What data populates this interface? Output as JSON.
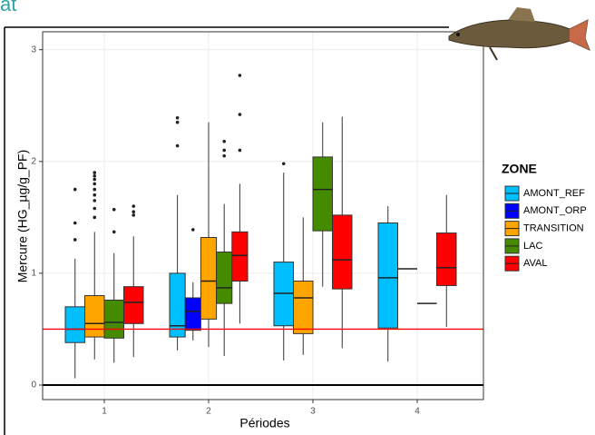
{
  "chart_data": {
    "type": "boxplot",
    "title": "at",
    "x_label": "Périodes",
    "y_label": "Mercure (HG_µg/g_PF)",
    "legend_title": "ZONE",
    "categories": [
      "1",
      "2",
      "3",
      "4"
    ],
    "ylim": [
      -0.13,
      3.16
    ],
    "yticks": [
      0,
      1,
      2,
      3
    ],
    "grid": true,
    "hlines": [
      {
        "value": 0.5,
        "color": "#ff0000"
      },
      {
        "value": 0,
        "color": "#000000"
      }
    ],
    "series": [
      {
        "name": "AMONT_REF",
        "color": "#00bfff",
        "boxes": [
          {
            "min": 0.06,
            "q1": 0.38,
            "median": 0.5,
            "q3": 0.7,
            "max": 1.13,
            "outliers": [
              1.75,
              1.45,
              1.3
            ]
          },
          {
            "min": 0.31,
            "q1": 0.43,
            "median": 0.53,
            "q3": 1.0,
            "max": 1.7,
            "outliers": [
              2.39,
              2.35,
              2.14
            ]
          },
          {
            "min": 0.22,
            "q1": 0.53,
            "median": 0.82,
            "q3": 1.1,
            "max": 1.9,
            "outliers": [
              1.98
            ]
          },
          {
            "min": 0.21,
            "q1": 0.51,
            "median": 0.96,
            "q3": 1.45,
            "max": 1.6,
            "outliers": []
          }
        ]
      },
      {
        "name": "AMONT_ORP",
        "color": "#0000ff",
        "boxes": [
          null,
          {
            "min": 0.4,
            "q1": 0.49,
            "median": 0.66,
            "q3": 0.78,
            "max": 0.92,
            "outliers": [
              1.39
            ]
          },
          null,
          null
        ]
      },
      {
        "name": "TRANSITION",
        "color": "#ffa500",
        "boxes": [
          {
            "min": 0.23,
            "q1": 0.43,
            "median": 0.55,
            "q3": 0.8,
            "max": 1.37,
            "outliers": [
              1.9,
              1.87,
              1.84,
              1.8,
              1.75,
              1.7,
              1.65,
              1.58,
              1.5
            ]
          },
          {
            "min": 0.34,
            "q1": 0.59,
            "median": 0.93,
            "q3": 1.32,
            "max": 2.35,
            "outliers": []
          },
          {
            "min": 0.27,
            "q1": 0.46,
            "median": 0.78,
            "q3": 0.93,
            "max": 1.5,
            "outliers": []
          },
          {
            "min": 1.04,
            "q1": 1.04,
            "median": 1.04,
            "q3": 1.04,
            "max": 1.04,
            "outliers": []
          }
        ]
      },
      {
        "name": "LAC",
        "color": "#458b00",
        "boxes": [
          {
            "min": 0.2,
            "q1": 0.42,
            "median": 0.56,
            "q3": 0.76,
            "max": 1.18,
            "outliers": [
              1.57,
              1.37
            ]
          },
          {
            "min": 0.26,
            "q1": 0.73,
            "median": 0.87,
            "q3": 1.19,
            "max": 1.62,
            "outliers": [
              2.18,
              2.1,
              2.05
            ]
          },
          {
            "min": 0.88,
            "q1": 1.38,
            "median": 1.75,
            "q3": 2.04,
            "max": 2.35,
            "outliers": []
          },
          {
            "min": 0.73,
            "q1": 0.73,
            "median": 0.73,
            "q3": 0.73,
            "max": 0.73,
            "outliers": []
          }
        ]
      },
      {
        "name": "AVAL",
        "color": "#ff0000",
        "boxes": [
          {
            "min": 0.25,
            "q1": 0.55,
            "median": 0.74,
            "q3": 0.88,
            "max": 1.33,
            "outliers": [
              1.6,
              1.55,
              1.52
            ]
          },
          {
            "min": 0.55,
            "q1": 0.93,
            "median": 1.16,
            "q3": 1.37,
            "max": 1.8,
            "outliers": [
              2.77,
              2.42,
              2.1
            ]
          },
          {
            "min": 0.33,
            "q1": 0.86,
            "median": 1.12,
            "q3": 1.52,
            "max": 2.4,
            "outliers": []
          },
          {
            "min": 0.52,
            "q1": 0.89,
            "median": 1.05,
            "q3": 1.36,
            "max": 1.7,
            "outliers": []
          }
        ]
      }
    ]
  }
}
